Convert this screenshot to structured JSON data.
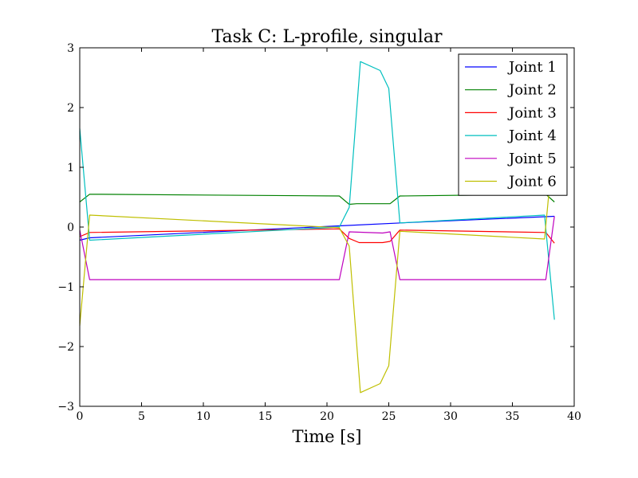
{
  "chart_data": {
    "type": "line",
    "title": "Task C: L-profile, singular",
    "xlabel": "Time [s]",
    "ylabel": "",
    "xlim": [
      0,
      40
    ],
    "ylim": [
      -3,
      3
    ],
    "xticks": [
      0,
      5,
      10,
      15,
      20,
      25,
      30,
      35,
      40
    ],
    "yticks": [
      -3,
      -2,
      -1,
      0,
      1,
      2,
      3
    ],
    "xtick_labels": [
      "0",
      "5",
      "10",
      "15",
      "20",
      "25",
      "30",
      "35",
      "40"
    ],
    "ytick_labels": [
      "−3",
      "−2",
      "−1",
      "0",
      "1",
      "2",
      "3"
    ],
    "grid": false,
    "legend_position": "top-right",
    "series": [
      {
        "name": "Joint 1",
        "color": "#0000ff",
        "points": [
          [
            0,
            -0.22
          ],
          [
            0.8,
            -0.18
          ],
          [
            21,
            0.02
          ],
          [
            26,
            0.07
          ],
          [
            38.4,
            0.18
          ]
        ]
      },
      {
        "name": "Joint 2",
        "color": "#008000",
        "points": [
          [
            0,
            0.42
          ],
          [
            0.8,
            0.55
          ],
          [
            21,
            0.52
          ],
          [
            21.8,
            0.38
          ],
          [
            22.4,
            0.39
          ],
          [
            25.1,
            0.39
          ],
          [
            25.9,
            0.52
          ],
          [
            37.7,
            0.55
          ],
          [
            38.4,
            0.42
          ]
        ]
      },
      {
        "name": "Joint 3",
        "color": "#ff0000",
        "points": [
          [
            0,
            -0.16
          ],
          [
            0.8,
            -0.09
          ],
          [
            21,
            -0.03
          ],
          [
            21.8,
            -0.19
          ],
          [
            22.6,
            -0.26
          ],
          [
            24.5,
            -0.26
          ],
          [
            25.1,
            -0.24
          ],
          [
            25.9,
            -0.05
          ],
          [
            37.7,
            -0.09
          ],
          [
            38.4,
            -0.27
          ]
        ]
      },
      {
        "name": "Joint 4",
        "color": "#00bfbf",
        "points": [
          [
            0,
            1.65
          ],
          [
            0.8,
            -0.22
          ],
          [
            21,
            0.0
          ],
          [
            21.8,
            0.33
          ],
          [
            22.7,
            2.77
          ],
          [
            24.3,
            2.62
          ],
          [
            25.0,
            2.32
          ],
          [
            25.9,
            0.07
          ],
          [
            37.6,
            0.2
          ],
          [
            38.4,
            -1.55
          ]
        ]
      },
      {
        "name": "Joint 5",
        "color": "#bf00bf",
        "points": [
          [
            0,
            -0.05
          ],
          [
            0.8,
            -0.88
          ],
          [
            21,
            -0.88
          ],
          [
            21.8,
            -0.08
          ],
          [
            24.5,
            -0.1
          ],
          [
            25.1,
            -0.08
          ],
          [
            25.9,
            -0.88
          ],
          [
            37.7,
            -0.88
          ],
          [
            38.4,
            0.18
          ]
        ]
      },
      {
        "name": "Joint 6",
        "color": "#bfbf00",
        "points": [
          [
            0,
            -1.65
          ],
          [
            0.8,
            0.2
          ],
          [
            21,
            -0.01
          ],
          [
            21.8,
            -0.32
          ],
          [
            22.7,
            -2.77
          ],
          [
            24.3,
            -2.62
          ],
          [
            25.0,
            -2.32
          ],
          [
            25.9,
            -0.07
          ],
          [
            37.6,
            -0.2
          ],
          [
            38.4,
            1.55
          ]
        ]
      }
    ]
  }
}
